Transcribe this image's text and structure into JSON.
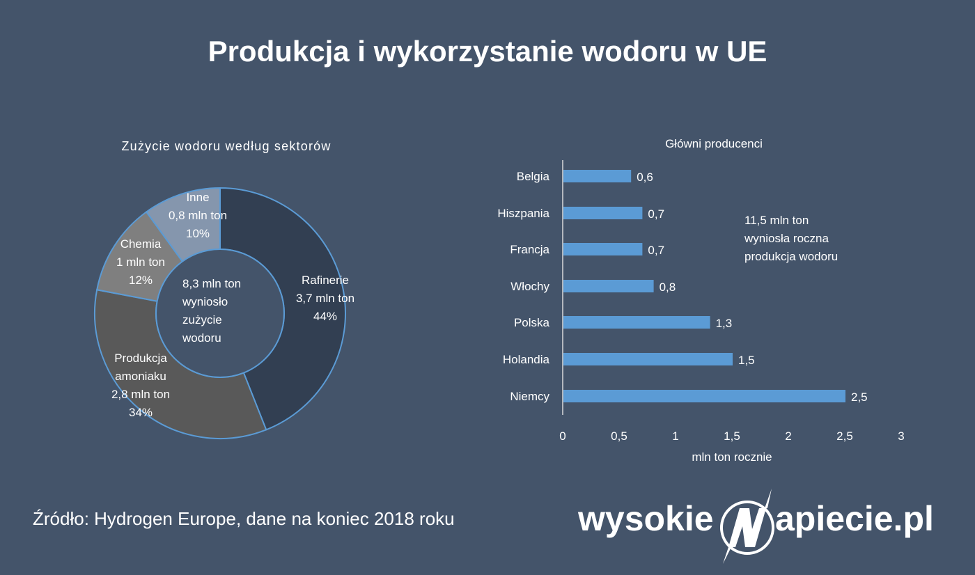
{
  "page": {
    "title": "Produkcja i wykorzystanie wodoru w UE",
    "source": "Źródło: Hydrogen Europe, dane na koniec 2018 roku",
    "logo": {
      "left": "wysokie",
      "right": "apiecie.pl",
      "icon": "lightning-n-circle-icon"
    }
  },
  "donut": {
    "title": "Zużycie wodoru według sektorów",
    "center_lines": [
      "8,3 mln ton",
      "wyniosło",
      "zużycie",
      "wodoru"
    ],
    "segments": [
      {
        "name": "Rafinerie",
        "value_label": "3,7 mln ton",
        "pct_label": "44%"
      },
      {
        "name_lines": [
          "Produkcja",
          "amoniaku"
        ],
        "value_label": "2,8 mln ton",
        "pct_label": "34%"
      },
      {
        "name": "Chemia",
        "value_label": "1 mln ton",
        "pct_label": "12%"
      },
      {
        "name": "Inne",
        "value_label": "0,8 mln ton",
        "pct_label": "10%"
      }
    ]
  },
  "bars": {
    "title": "Główni producenci",
    "note_lines": [
      "11,5 mln ton",
      "wyniosła roczna",
      "produkcja wodoru"
    ],
    "xlabel": "mln ton rocznie",
    "ticks": [
      "0",
      "0,5",
      "1",
      "1,5",
      "2",
      "2,5",
      "3"
    ],
    "rows": [
      {
        "country": "Belgia",
        "label": "0,6"
      },
      {
        "country": "Hiszpania",
        "label": "0,7"
      },
      {
        "country": "Francja",
        "label": "0,7"
      },
      {
        "country": "Włochy",
        "label": "0,8"
      },
      {
        "country": "Polska",
        "label": "1,3"
      },
      {
        "country": "Holandia",
        "label": "1,5"
      },
      {
        "country": "Niemcy",
        "label": "2,5"
      }
    ]
  },
  "colors": {
    "background": "#44546a",
    "rafinerie": "#323f52",
    "amoniak": "#595959",
    "chemia": "#7f7f7f",
    "inne": "#8596ad",
    "outline": "#5b9bd5",
    "bar": "#5b9bd5"
  },
  "chart_data": [
    {
      "type": "pie",
      "title": "Zużycie wodoru według sektorów",
      "subtype": "donut",
      "center_text": "8,3 mln ton wyniosło zużycie wodoru",
      "categories": [
        "Rafinerie",
        "Produkcja amoniaku",
        "Chemia",
        "Inne"
      ],
      "values": [
        3.7,
        2.8,
        1.0,
        0.8
      ],
      "percentages": [
        44,
        34,
        12,
        10
      ],
      "unit": "mln ton"
    },
    {
      "type": "bar",
      "orientation": "horizontal",
      "title": "Główni producenci",
      "categories": [
        "Belgia",
        "Hiszpania",
        "Francja",
        "Włochy",
        "Polska",
        "Holandia",
        "Niemcy"
      ],
      "values": [
        0.6,
        0.7,
        0.7,
        0.8,
        1.3,
        1.5,
        2.5
      ],
      "xlabel": "mln ton rocznie",
      "ylabel": "",
      "xlim": [
        0,
        3
      ],
      "xticks": [
        0,
        0.5,
        1,
        1.5,
        2,
        2.5,
        3
      ],
      "grid": false,
      "annotation": "11,5 mln ton wyniosła roczna produkcja wodoru"
    }
  ]
}
